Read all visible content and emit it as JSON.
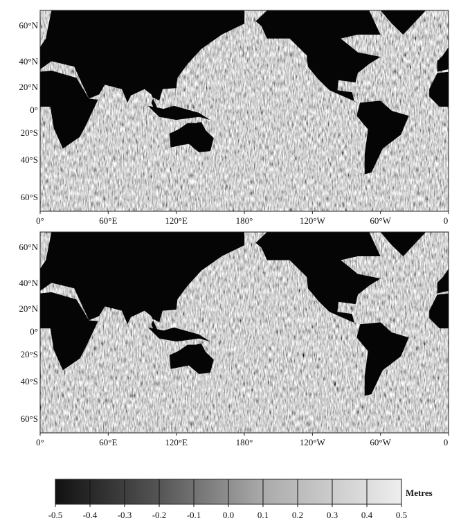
{
  "maps": [
    {
      "lat_labels": [
        "60°N",
        "40°N",
        "20°N",
        "0°",
        "20°S",
        "40°S",
        "60°S"
      ],
      "lon_labels": [
        "0°",
        "60°E",
        "120°E",
        "180°",
        "120°W",
        "60°W",
        "0"
      ]
    },
    {
      "lat_labels": [
        "60°N",
        "40°N",
        "20°N",
        "0°",
        "20°S",
        "40°S",
        "60°S"
      ],
      "lon_labels": [
        "0°",
        "60°E",
        "120°E",
        "180°",
        "120°W",
        "60°W",
        "0"
      ]
    }
  ],
  "colorbar": {
    "label": "Metres",
    "lim": [
      -0.5,
      0.5
    ],
    "ticks": [
      -0.5,
      -0.4,
      -0.3,
      -0.2,
      -0.1,
      {
        "value": 0,
        "label": "0.0"
      },
      0.1,
      0.2,
      0.3,
      0.4,
      0.5
    ]
  }
}
